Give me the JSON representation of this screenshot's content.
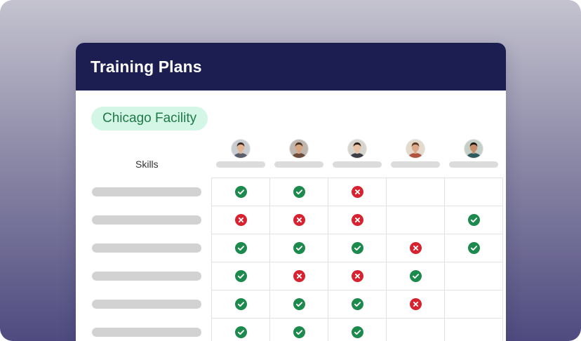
{
  "card": {
    "title": "Training Plans"
  },
  "facility": {
    "label": "Chicago Facility"
  },
  "table": {
    "skills_header": "Skills",
    "people": [
      {
        "avatar": "avatar-man-glasses-icon",
        "skin": "#e2b494",
        "hair": "#3b2a20",
        "shirt": "#5a5f6b",
        "bg": "#c9cdd2"
      },
      {
        "avatar": "avatar-man-beard-icon",
        "skin": "#d9a480",
        "hair": "#4a2e1d",
        "shirt": "#6e4c3a",
        "bg": "#bfb7ae"
      },
      {
        "avatar": "avatar-woman-icon",
        "skin": "#e8c0a2",
        "hair": "#2c1d16",
        "shirt": "#3d3d46",
        "bg": "#d7d3cd"
      },
      {
        "avatar": "avatar-woman-curly-icon",
        "skin": "#dfa886",
        "hair": "#5b3a26",
        "shirt": "#b1543f",
        "bg": "#e3d9cc"
      },
      {
        "avatar": "avatar-man-smiling-icon",
        "skin": "#c98e6b",
        "hair": "#1f1712",
        "shirt": "#2f5b5f",
        "bg": "#c4cfc7"
      }
    ],
    "rows": [
      [
        "check",
        "check",
        "cross",
        "",
        ""
      ],
      [
        "cross",
        "cross",
        "cross",
        "",
        "check"
      ],
      [
        "check",
        "check",
        "check",
        "cross",
        "check"
      ],
      [
        "check",
        "cross",
        "cross",
        "check",
        ""
      ],
      [
        "check",
        "check",
        "check",
        "cross",
        ""
      ],
      [
        "check",
        "check",
        "check",
        "",
        ""
      ]
    ]
  },
  "colors": {
    "header_bg": "#1c1e52",
    "check": "#1d8a4d",
    "cross": "#d8222f",
    "chip_bg": "#d3f6e6",
    "chip_text": "#1f7a47"
  }
}
